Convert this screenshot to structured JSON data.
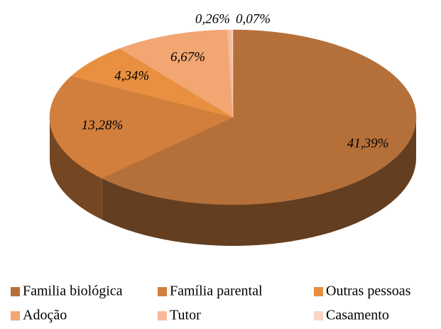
{
  "chart_data": {
    "type": "pie3d",
    "series": [
      {
        "name": "Familia biológica",
        "color": "#b5703a",
        "values": [
          41.39
        ],
        "value_labels": [
          "41,39%"
        ]
      },
      {
        "name": "Família parental",
        "color": "#d27f3e",
        "values": [
          13.28
        ],
        "value_labels": [
          "13,28%"
        ]
      },
      {
        "name": "Outras pessoas",
        "color": "#e8903f",
        "values": [
          4.34
        ],
        "value_labels": [
          "4,34%"
        ]
      },
      {
        "name": "Adoção",
        "color": "#f2a672",
        "values": [
          6.67
        ],
        "value_labels": [
          "6,67%"
        ]
      },
      {
        "name": "Tutor",
        "color": "#f6b99a",
        "values": [
          0.26
        ],
        "value_labels": [
          "0,26%"
        ]
      },
      {
        "name": "Casamento",
        "color": "#f9d5c6",
        "values": [
          0.07
        ],
        "value_labels": [
          "0,07%"
        ]
      }
    ],
    "legend": "bottom"
  }
}
